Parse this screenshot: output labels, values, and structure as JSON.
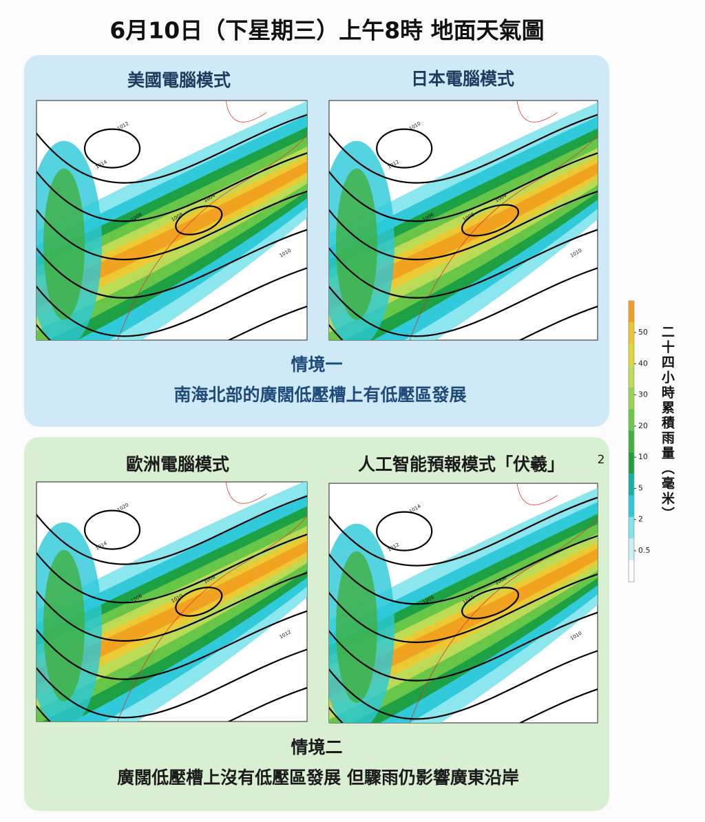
{
  "header": {
    "title": "6月10日（下星期三）上午8時 地面天氣圖"
  },
  "scenarios": [
    {
      "name": "情境一",
      "description": "南海北部的廣闊低壓槽上有低壓區發展",
      "maps": [
        {
          "label": "美國電腦模式",
          "contour_labels": [
            "1012",
            "1014",
            "1008",
            "1006",
            "1004",
            "1010"
          ]
        },
        {
          "label": "日本電腦模式",
          "contour_labels": [
            "1010",
            "1012",
            "1008",
            "1006",
            "1004",
            "1010"
          ]
        }
      ]
    },
    {
      "name": "情境二",
      "description": "廣闊低壓槽上沒有低壓區發展 但驟雨仍影響廣東沿岸",
      "maps": [
        {
          "label": "歐洲電腦模式",
          "contour_labels": [
            "1020",
            "1014",
            "1010",
            "1006",
            "1008",
            "1012"
          ]
        },
        {
          "label": "人工智能預報模式「伏羲」",
          "note": "2",
          "contour_labels": [
            "1014",
            "1012",
            "1010",
            "1008",
            "1006",
            "1010"
          ]
        }
      ]
    }
  ],
  "legend": {
    "title": "二十四小時累積雨量（毫米）",
    "ticks": [
      0.5,
      2,
      5,
      10,
      20,
      30,
      40,
      50
    ],
    "colors": [
      "#ffffff",
      "#c8f0f4",
      "#7fe3ec",
      "#2cc8d8",
      "#12b0a0",
      "#1e9e3c",
      "#40b040",
      "#6cc848",
      "#98d454",
      "#c0dc58",
      "#dcd83c",
      "#ecc830",
      "#f0a020"
    ]
  }
}
